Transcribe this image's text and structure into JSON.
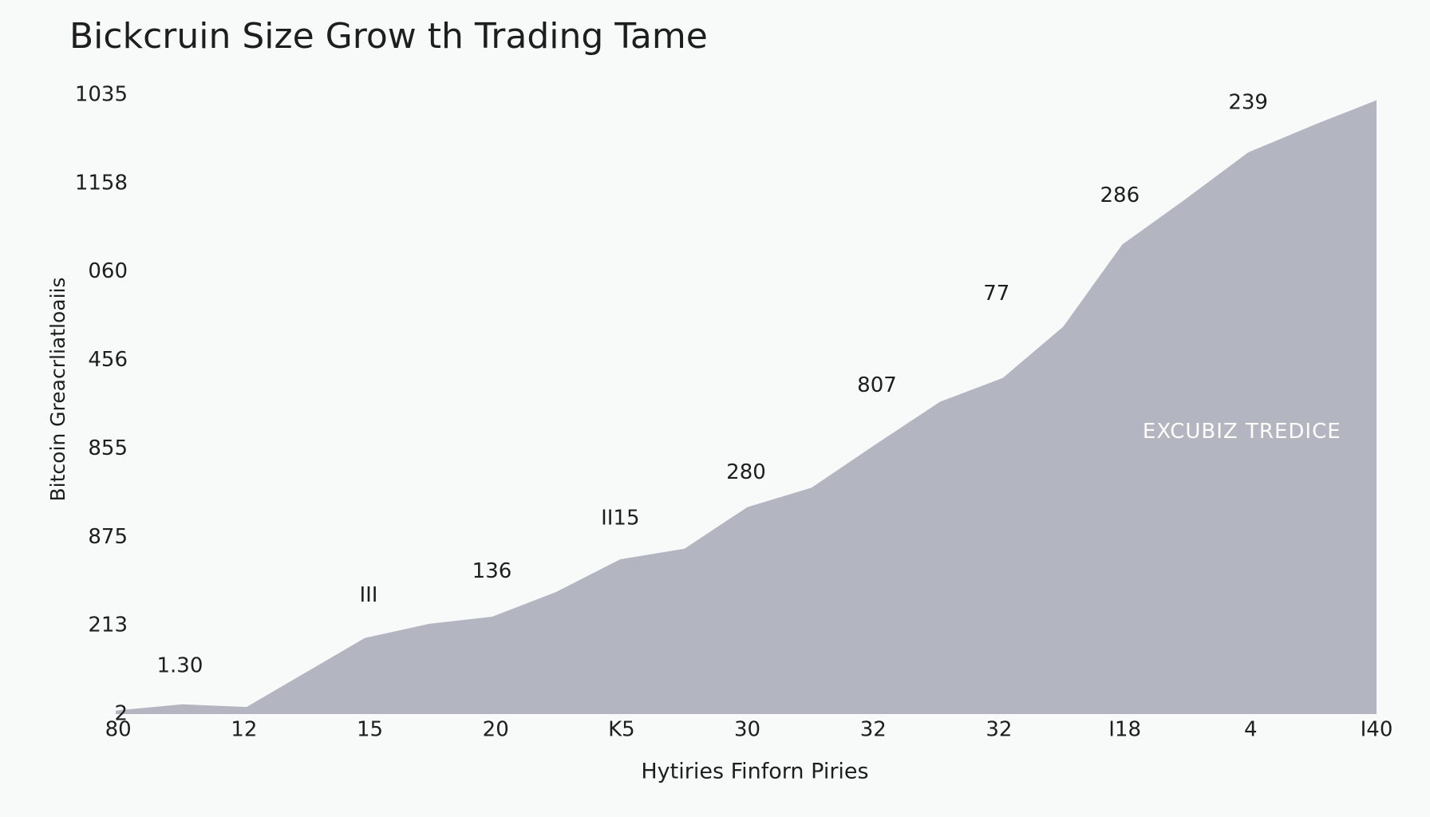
{
  "chart_data": {
    "type": "area",
    "title": "Bickcruin Size Grow th Trading Tame",
    "xlabel": "Hytiries Finforn Piries",
    "ylabel": "Bitcoin Greacrliatloaiis",
    "color": "#b3b5c1",
    "x": [
      -0.02,
      0.51,
      1.02,
      1.96,
      2.47,
      2.97,
      3.48,
      3.99,
      4.5,
      5.0,
      5.51,
      6.02,
      6.53,
      7.03,
      7.51,
      7.98,
      8.48,
      8.98,
      9.5,
      10.0
    ],
    "values": [
      0.04,
      0.11,
      0.08,
      0.86,
      1.02,
      1.1,
      1.38,
      1.75,
      1.87,
      2.34,
      2.56,
      3.05,
      3.53,
      3.8,
      4.38,
      5.31,
      5.82,
      6.35,
      6.66,
      6.94
    ],
    "xlim": [
      -0.02,
      10
    ],
    "ylim": [
      0,
      7
    ],
    "xticks": [
      {
        "value": 0,
        "label": "80"
      },
      {
        "value": 1,
        "label": "12"
      },
      {
        "value": 2,
        "label": "15"
      },
      {
        "value": 3,
        "label": "20"
      },
      {
        "value": 4,
        "label": "K5"
      },
      {
        "value": 5,
        "label": "30"
      },
      {
        "value": 6,
        "label": "32"
      },
      {
        "value": 7,
        "label": "32"
      },
      {
        "value": 8,
        "label": "I18"
      },
      {
        "value": 9,
        "label": "4"
      },
      {
        "value": 10,
        "label": "I40"
      }
    ],
    "yticks": [
      {
        "value": 0,
        "label": "2"
      },
      {
        "value": 1,
        "label": "213"
      },
      {
        "value": 2,
        "label": "875"
      },
      {
        "value": 3,
        "label": "855"
      },
      {
        "value": 4,
        "label": "456"
      },
      {
        "value": 5,
        "label": "060"
      },
      {
        "value": 6,
        "label": "1158"
      },
      {
        "value": 7,
        "label": "1035"
      }
    ],
    "annotations": [
      {
        "text": "1.30",
        "x": 0.49,
        "y": 0.54
      },
      {
        "text": "III",
        "x": 1.99,
        "y": 1.34
      },
      {
        "text": "136",
        "x": 2.97,
        "y": 1.61
      },
      {
        "text": "II15",
        "x": 3.99,
        "y": 2.21
      },
      {
        "text": "280",
        "x": 4.99,
        "y": 2.73
      },
      {
        "text": "807",
        "x": 6.03,
        "y": 3.71
      },
      {
        "text": "77",
        "x": 6.98,
        "y": 4.75
      },
      {
        "text": "286",
        "x": 7.96,
        "y": 5.86
      },
      {
        "text": "239",
        "x": 8.98,
        "y": 6.91
      }
    ],
    "inner_label": {
      "text": "EXCUBIZ TREDICE",
      "x": 8.93,
      "y": 3.19
    }
  }
}
